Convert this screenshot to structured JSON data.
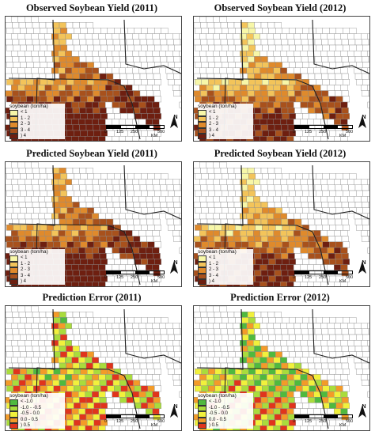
{
  "panels": [
    {
      "title": "Observed Soybean Yield (2011)",
      "legend_type": "yield"
    },
    {
      "title": "Observed Soybean Yield (2012)",
      "legend_type": "yield"
    },
    {
      "title": "Predicted Soybean Yield (2011)",
      "legend_type": "yield"
    },
    {
      "title": "Predicted Soybean Yield (2012)",
      "legend_type": "yield"
    },
    {
      "title": "Prediction Error (2011)",
      "legend_type": "error"
    },
    {
      "title": "Prediction Error (2012)",
      "legend_type": "error"
    }
  ],
  "legend": {
    "title": "soybean (ton/ha)",
    "yield_classes": [
      {
        "label": "< 1",
        "color": "#f7f7a8"
      },
      {
        "label": "1 - 2",
        "color": "#f3c45a"
      },
      {
        "label": "2 - 3",
        "color": "#df8a2c"
      },
      {
        "label": "3 - 4",
        "color": "#a8511c"
      },
      {
        "label": ") 4",
        "color": "#6e1f10"
      }
    ],
    "error_classes": [
      {
        "label": "< -1.0",
        "color": "#4fb93e"
      },
      {
        "label": "-1.0 - -0.5",
        "color": "#a9dc3c"
      },
      {
        "label": "-0.5 - 0.0",
        "color": "#f1f13c"
      },
      {
        "label": "0.0 - 0.5",
        "color": "#f39b28"
      },
      {
        "label": ") 0.5",
        "color": "#e0341c"
      }
    ]
  },
  "scale_bar": {
    "ticks": [
      "0",
      "125",
      "250",
      "500"
    ],
    "unit": "KM"
  },
  "north_label": "N",
  "colors": {
    "background": "#ffffff",
    "county_line": "#8a8a8a",
    "state_line": "#222222",
    "no_data": "#ffffff"
  }
}
